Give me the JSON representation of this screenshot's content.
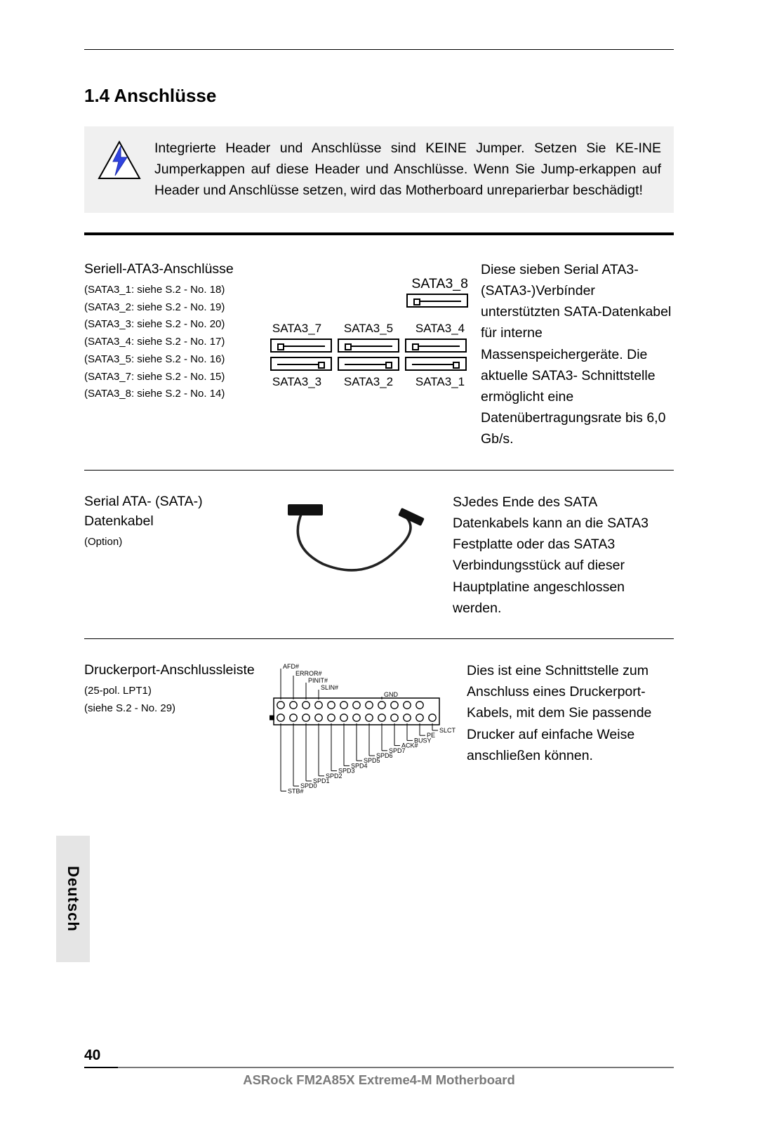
{
  "heading": "1.4  Anschlüsse",
  "warning": "Integrierte Header und Anschlüsse sind KEINE Jumper. Setzen Sie KE-INE Jumperkappen auf diese Header und Anschlüsse. Wenn Sie Jump-erkappen auf Header und Anschlüsse setzen, wird das Motherboard unreparierbar beschädigt!",
  "warn_icon": {
    "border_color": "#000000",
    "bolt_color": "#2b3fd9",
    "bg": "#ffffff"
  },
  "sata": {
    "left_title": "Seriell-ATA3-Anschlüsse",
    "refs": [
      "(SATA3_1: siehe S.2 - No. 18)",
      "(SATA3_2: siehe S.2 - No. 19)",
      "(SATA3_3: siehe S.2 - No. 20)",
      "(SATA3_4: siehe S.2 - No. 17)",
      "(SATA3_5: siehe S.2 - No. 16)",
      "(SATA3_7: siehe S.2 - No. 15)",
      "(SATA3_8: siehe S.2 - No. 14)"
    ],
    "top_single": "SATA3_8",
    "top_row": [
      "SATA3_7",
      "SATA3_5",
      "SATA3_4"
    ],
    "bottom_row": [
      "SATA3_3",
      "SATA3_2",
      "SATA3_1"
    ],
    "right": "Diese sieben Serial ATA3- (SATA3-)Verbínder unterstützten SATA-Datenkabel für interne Massenspeichergeräte. Die aktuelle SATA3- Schnittstelle ermöglicht eine Datenübertragungsrate bis 6,0 Gb/s."
  },
  "cable": {
    "left_title": "Serial ATA- (SATA-) Datenkabel",
    "left_sub": "(Option)",
    "right": "SJedes Ende des SATA Datenkabels kann an die SATA3 Festplatte oder das SATA3 Verbindungsstück auf dieser Hauptplatine angeschlossen werden."
  },
  "lpt": {
    "left_title": "Druckerport-Anschlussleiste",
    "left_sub1": "(25-pol. LPT1)",
    "left_sub2": "(siehe S.2 - No. 29)",
    "right": "Dies ist eine Schnittstelle zum Anschluss eines Druckerport-Kabels, mit dem Sie passende Drucker auf einfache Weise anschließen können.",
    "top_pins": [
      "AFD#",
      "ERROR#",
      "PINIT#",
      "SLIN#",
      "GND"
    ],
    "bottom_pins": [
      "STB#",
      "SPD0",
      "SPD1",
      "SPD2",
      "SPD3",
      "SPD4",
      "SPD5",
      "SPD6",
      "SPD7",
      "ACK#",
      "BUSY",
      "PE",
      "SLCT"
    ]
  },
  "side_tab": "Deutsch",
  "footer": {
    "page": "40",
    "title": "ASRock  FM2A85X Extreme4-M  Motherboard"
  }
}
